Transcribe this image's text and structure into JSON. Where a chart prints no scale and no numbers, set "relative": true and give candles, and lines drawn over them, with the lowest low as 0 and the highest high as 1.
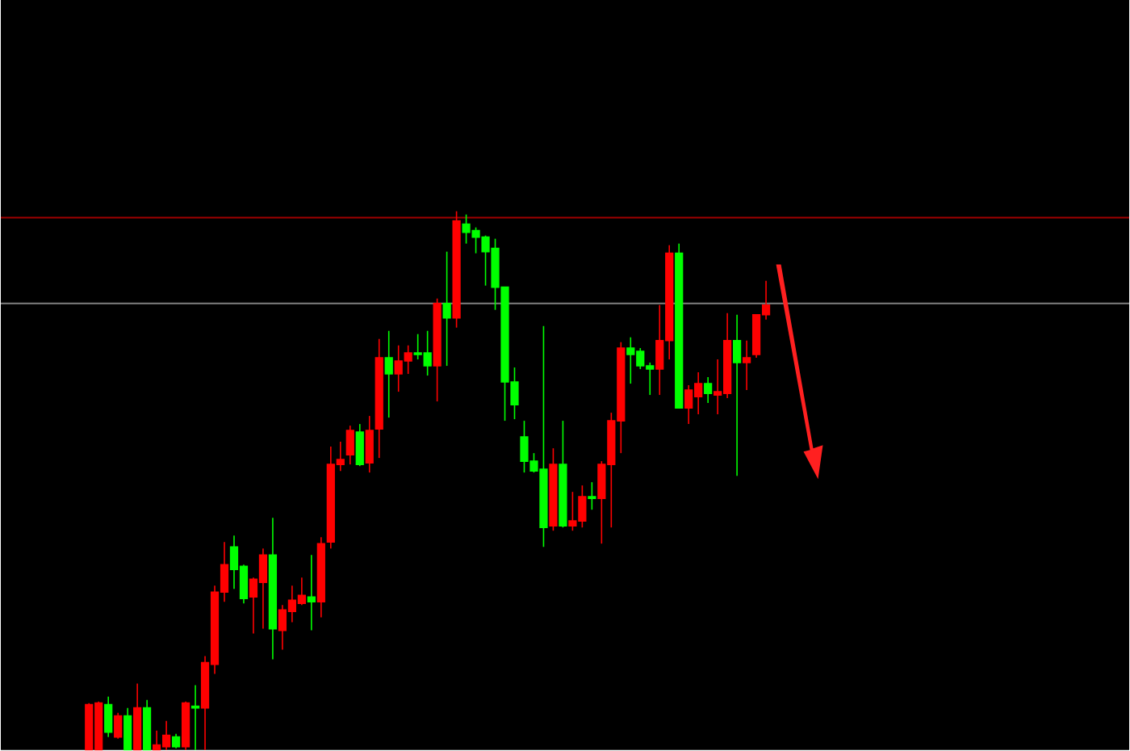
{
  "chart_data": {
    "type": "candlestick",
    "relative": true,
    "categories": [
      null,
      null,
      null,
      null,
      null,
      null,
      null,
      null,
      null,
      null,
      null,
      null,
      null,
      null,
      null,
      null,
      null,
      null,
      null,
      null,
      null,
      null,
      null,
      null,
      null,
      null,
      null,
      null,
      null,
      null,
      null,
      null,
      null,
      null,
      null,
      null,
      null,
      null,
      null,
      null,
      null,
      null,
      null,
      null,
      null,
      null,
      null,
      null,
      null,
      null,
      null,
      null,
      null,
      null,
      null,
      null,
      null,
      null,
      null,
      null,
      null,
      null,
      null,
      null,
      null,
      null,
      null,
      null,
      null,
      null,
      null
    ],
    "ohlc": [
      [
        0,
        0.087,
        0,
        0.084
      ],
      [
        0,
        0.09,
        0,
        0.087
      ],
      [
        0.084,
        0.099,
        0.024,
        0.033
      ],
      [
        0.024,
        0.069,
        0.021,
        0.063
      ],
      [
        0.063,
        0.078,
        0,
        0
      ],
      [
        0,
        0.123,
        0,
        0.078
      ],
      [
        0.078,
        0.093,
        0,
        0
      ],
      [
        0,
        0.036,
        0,
        0.009
      ],
      [
        0.006,
        0.054,
        0,
        0.027
      ],
      [
        0.024,
        0.03,
        0.003,
        0.006
      ],
      [
        0.006,
        0.09,
        0,
        0.087
      ],
      [
        0.081,
        0.12,
        0,
        0.078
      ],
      [
        0.078,
        0.174,
        0,
        0.162
      ],
      [
        0.159,
        0.305,
        0.141,
        0.293
      ],
      [
        0.293,
        0.386,
        0.275,
        0.344
      ],
      [
        0.377,
        0.398,
        0.299,
        0.335
      ],
      [
        0.341,
        0.344,
        0.272,
        0.281
      ],
      [
        0.284,
        0.32,
        0.216,
        0.317
      ],
      [
        0.311,
        0.374,
        0.225,
        0.362
      ],
      [
        0.362,
        0.431,
        0.168,
        0.225
      ],
      [
        0.222,
        0.269,
        0.186,
        0.26
      ],
      [
        0.257,
        0.305,
        0.237,
        0.278
      ],
      [
        0.272,
        0.32,
        0.269,
        0.287
      ],
      [
        0.284,
        0.362,
        0.222,
        0.275
      ],
      [
        0.275,
        0.395,
        0.246,
        0.383
      ],
      [
        0.386,
        0.563,
        0.374,
        0.53
      ],
      [
        0.53,
        0.572,
        0.518,
        0.539
      ],
      [
        0.548,
        0.602,
        0.53,
        0.593
      ],
      [
        0.59,
        0.605,
        0.527,
        0.53
      ],
      [
        0.533,
        0.62,
        0.515,
        0.593
      ],
      [
        0.596,
        0.763,
        0.542,
        0.728
      ],
      [
        0.728,
        0.778,
        0.617,
        0.698
      ],
      [
        0.698,
        0.751,
        0.665,
        0.722
      ],
      [
        0.722,
        0.751,
        0.698,
        0.737
      ],
      [
        0.737,
        0.772,
        0.725,
        0.734
      ],
      [
        0.737,
        0.778,
        0.695,
        0.713
      ],
      [
        0.713,
        0.838,
        0.647,
        0.829
      ],
      [
        0.829,
        0.925,
        0.713,
        0.802
      ],
      [
        0.802,
        1,
        0.784,
        0.982
      ],
      [
        0.976,
        0.994,
        0.94,
        0.961
      ],
      [
        0.964,
        0.97,
        0.922,
        0.952
      ],
      [
        0.952,
        0.955,
        0.862,
        0.925
      ],
      [
        0.931,
        0.949,
        0.817,
        0.859
      ],
      [
        0.859,
        0.859,
        0.611,
        0.683
      ],
      [
        0.683,
        0.71,
        0.614,
        0.641
      ],
      [
        0.581,
        0.611,
        0.515,
        0.536
      ],
      [
        0.536,
        0.551,
        0.515,
        0.518
      ],
      [
        0.521,
        0.787,
        0.377,
        0.413
      ],
      [
        0.416,
        0.56,
        0.407,
        0.53
      ],
      [
        0.53,
        0.611,
        0.413,
        0.416
      ],
      [
        0.416,
        0.479,
        0.407,
        0.425
      ],
      [
        0.425,
        0.491,
        0.413,
        0.47
      ],
      [
        0.47,
        0.497,
        0.446,
        0.467
      ],
      [
        0.467,
        0.536,
        0.383,
        0.53
      ],
      [
        0.53,
        0.626,
        0.413,
        0.611
      ],
      [
        0.611,
        0.757,
        0.551,
        0.746
      ],
      [
        0.746,
        0.766,
        0.68,
        0.734
      ],
      [
        0.74,
        0.746,
        0.707,
        0.713
      ],
      [
        0.713,
        0.719,
        0.659,
        0.707
      ],
      [
        0.707,
        0.826,
        0.659,
        0.76
      ],
      [
        0.76,
        0.937,
        0.725,
        0.922
      ],
      [
        0.922,
        0.94,
        0.635,
        0.635
      ],
      [
        0.635,
        0.677,
        0.605,
        0.668
      ],
      [
        0.656,
        0.701,
        0.623,
        0.68
      ],
      [
        0.68,
        0.692,
        0.644,
        0.662
      ],
      [
        0.659,
        0.725,
        0.623,
        0.665
      ],
      [
        0.662,
        0.811,
        0.653,
        0.76
      ],
      [
        0.76,
        0.808,
        0.509,
        0.719
      ],
      [
        0.719,
        0.76,
        0.668,
        0.728
      ],
      [
        0.734,
        0.808,
        0.728,
        0.808
      ],
      [
        0.808,
        0.871,
        0.799,
        0.826
      ]
    ],
    "colors": [
      "#ff0000",
      "#ff0000",
      "#00ff00",
      "#ff0000",
      "#00ff00",
      "#ff0000",
      "#00ff00",
      "#ff0000",
      "#ff0000",
      "#00ff00",
      "#ff0000",
      "#00ff00",
      "#ff0000",
      "#ff0000",
      "#ff0000",
      "#00ff00",
      "#00ff00",
      "#ff0000",
      "#ff0000",
      "#00ff00",
      "#ff0000",
      "#ff0000",
      "#ff0000",
      "#00ff00",
      "#ff0000",
      "#ff0000",
      "#ff0000",
      "#ff0000",
      "#00ff00",
      "#ff0000",
      "#ff0000",
      "#00ff00",
      "#ff0000",
      "#ff0000",
      "#00ff00",
      "#00ff00",
      "#ff0000",
      "#00ff00",
      "#ff0000",
      "#00ff00",
      "#00ff00",
      "#00ff00",
      "#00ff00",
      "#00ff00",
      "#00ff00",
      "#00ff00",
      "#00ff00",
      "#00ff00",
      "#ff0000",
      "#00ff00",
      "#ff0000",
      "#ff0000",
      "#00ff00",
      "#ff0000",
      "#ff0000",
      "#ff0000",
      "#00ff00",
      "#00ff00",
      "#00ff00",
      "#ff0000",
      "#ff0000",
      "#00ff00",
      "#ff0000",
      "#ff0000",
      "#00ff00",
      "#ff0000",
      "#ff0000",
      "#00ff00",
      "#ff0000",
      "#ff0000",
      "#ff0000"
    ],
    "ref_lines": [
      {
        "axis": "y",
        "value": 0.988,
        "color": "#a00000"
      },
      {
        "axis": "y",
        "value": 0.829,
        "color": "#808080"
      }
    ]
  }
}
